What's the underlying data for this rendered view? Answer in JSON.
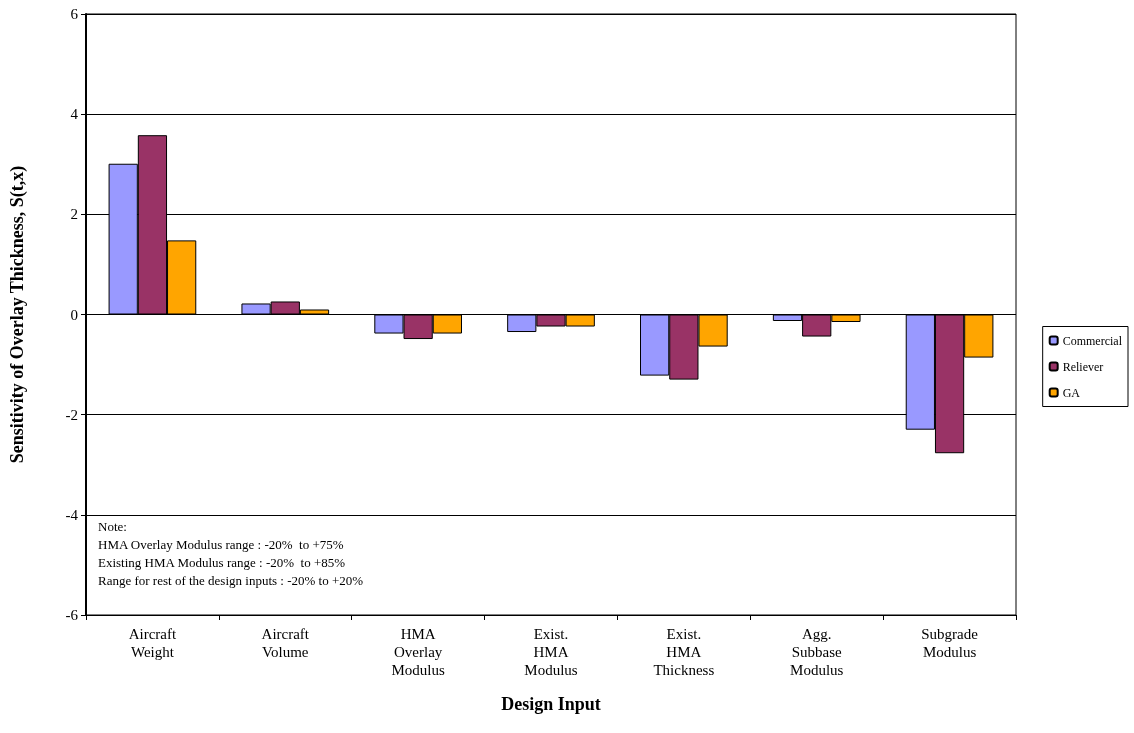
{
  "chart_data": {
    "type": "bar",
    "xlabel": "Design Input",
    "ylabel": "Sensitivity of Overlay Thickness, S(t,x)",
    "categories": [
      "Aircraft\nWeight",
      "Aircraft\nVolume",
      "HMA\nOverlay\nModulus",
      "Exist.\nHMA\nModulus",
      "Exist.\nHMA\nThickness",
      "Agg.\nSubbase\nModulus",
      "Subgrade\nModulus"
    ],
    "series": [
      {
        "name": "Commercial",
        "color": "#9999ff",
        "values": [
          3.01,
          0.22,
          -0.38,
          -0.35,
          -1.22,
          -0.13,
          -2.3
        ]
      },
      {
        "name": "Reliever",
        "color": "#993366",
        "values": [
          3.58,
          0.26,
          -0.49,
          -0.24,
          -1.3,
          -0.44,
          -2.77
        ]
      },
      {
        "name": "GA",
        "color": "#ffa500",
        "values": [
          1.48,
          0.1,
          -0.38,
          -0.24,
          -0.64,
          -0.15,
          -0.86
        ]
      }
    ],
    "ylim": [
      -6,
      6
    ],
    "yticks": [
      -6,
      -4,
      -2,
      0,
      2,
      4,
      6
    ],
    "grid": "y",
    "legend": "right",
    "annotations": [
      "Note:\nHMA Overlay Modulus range : -20%  to +75%\nExisting HMA Modulus range : -20%  to +85%\nRange for rest of the design inputs : -20% to +20%"
    ]
  }
}
